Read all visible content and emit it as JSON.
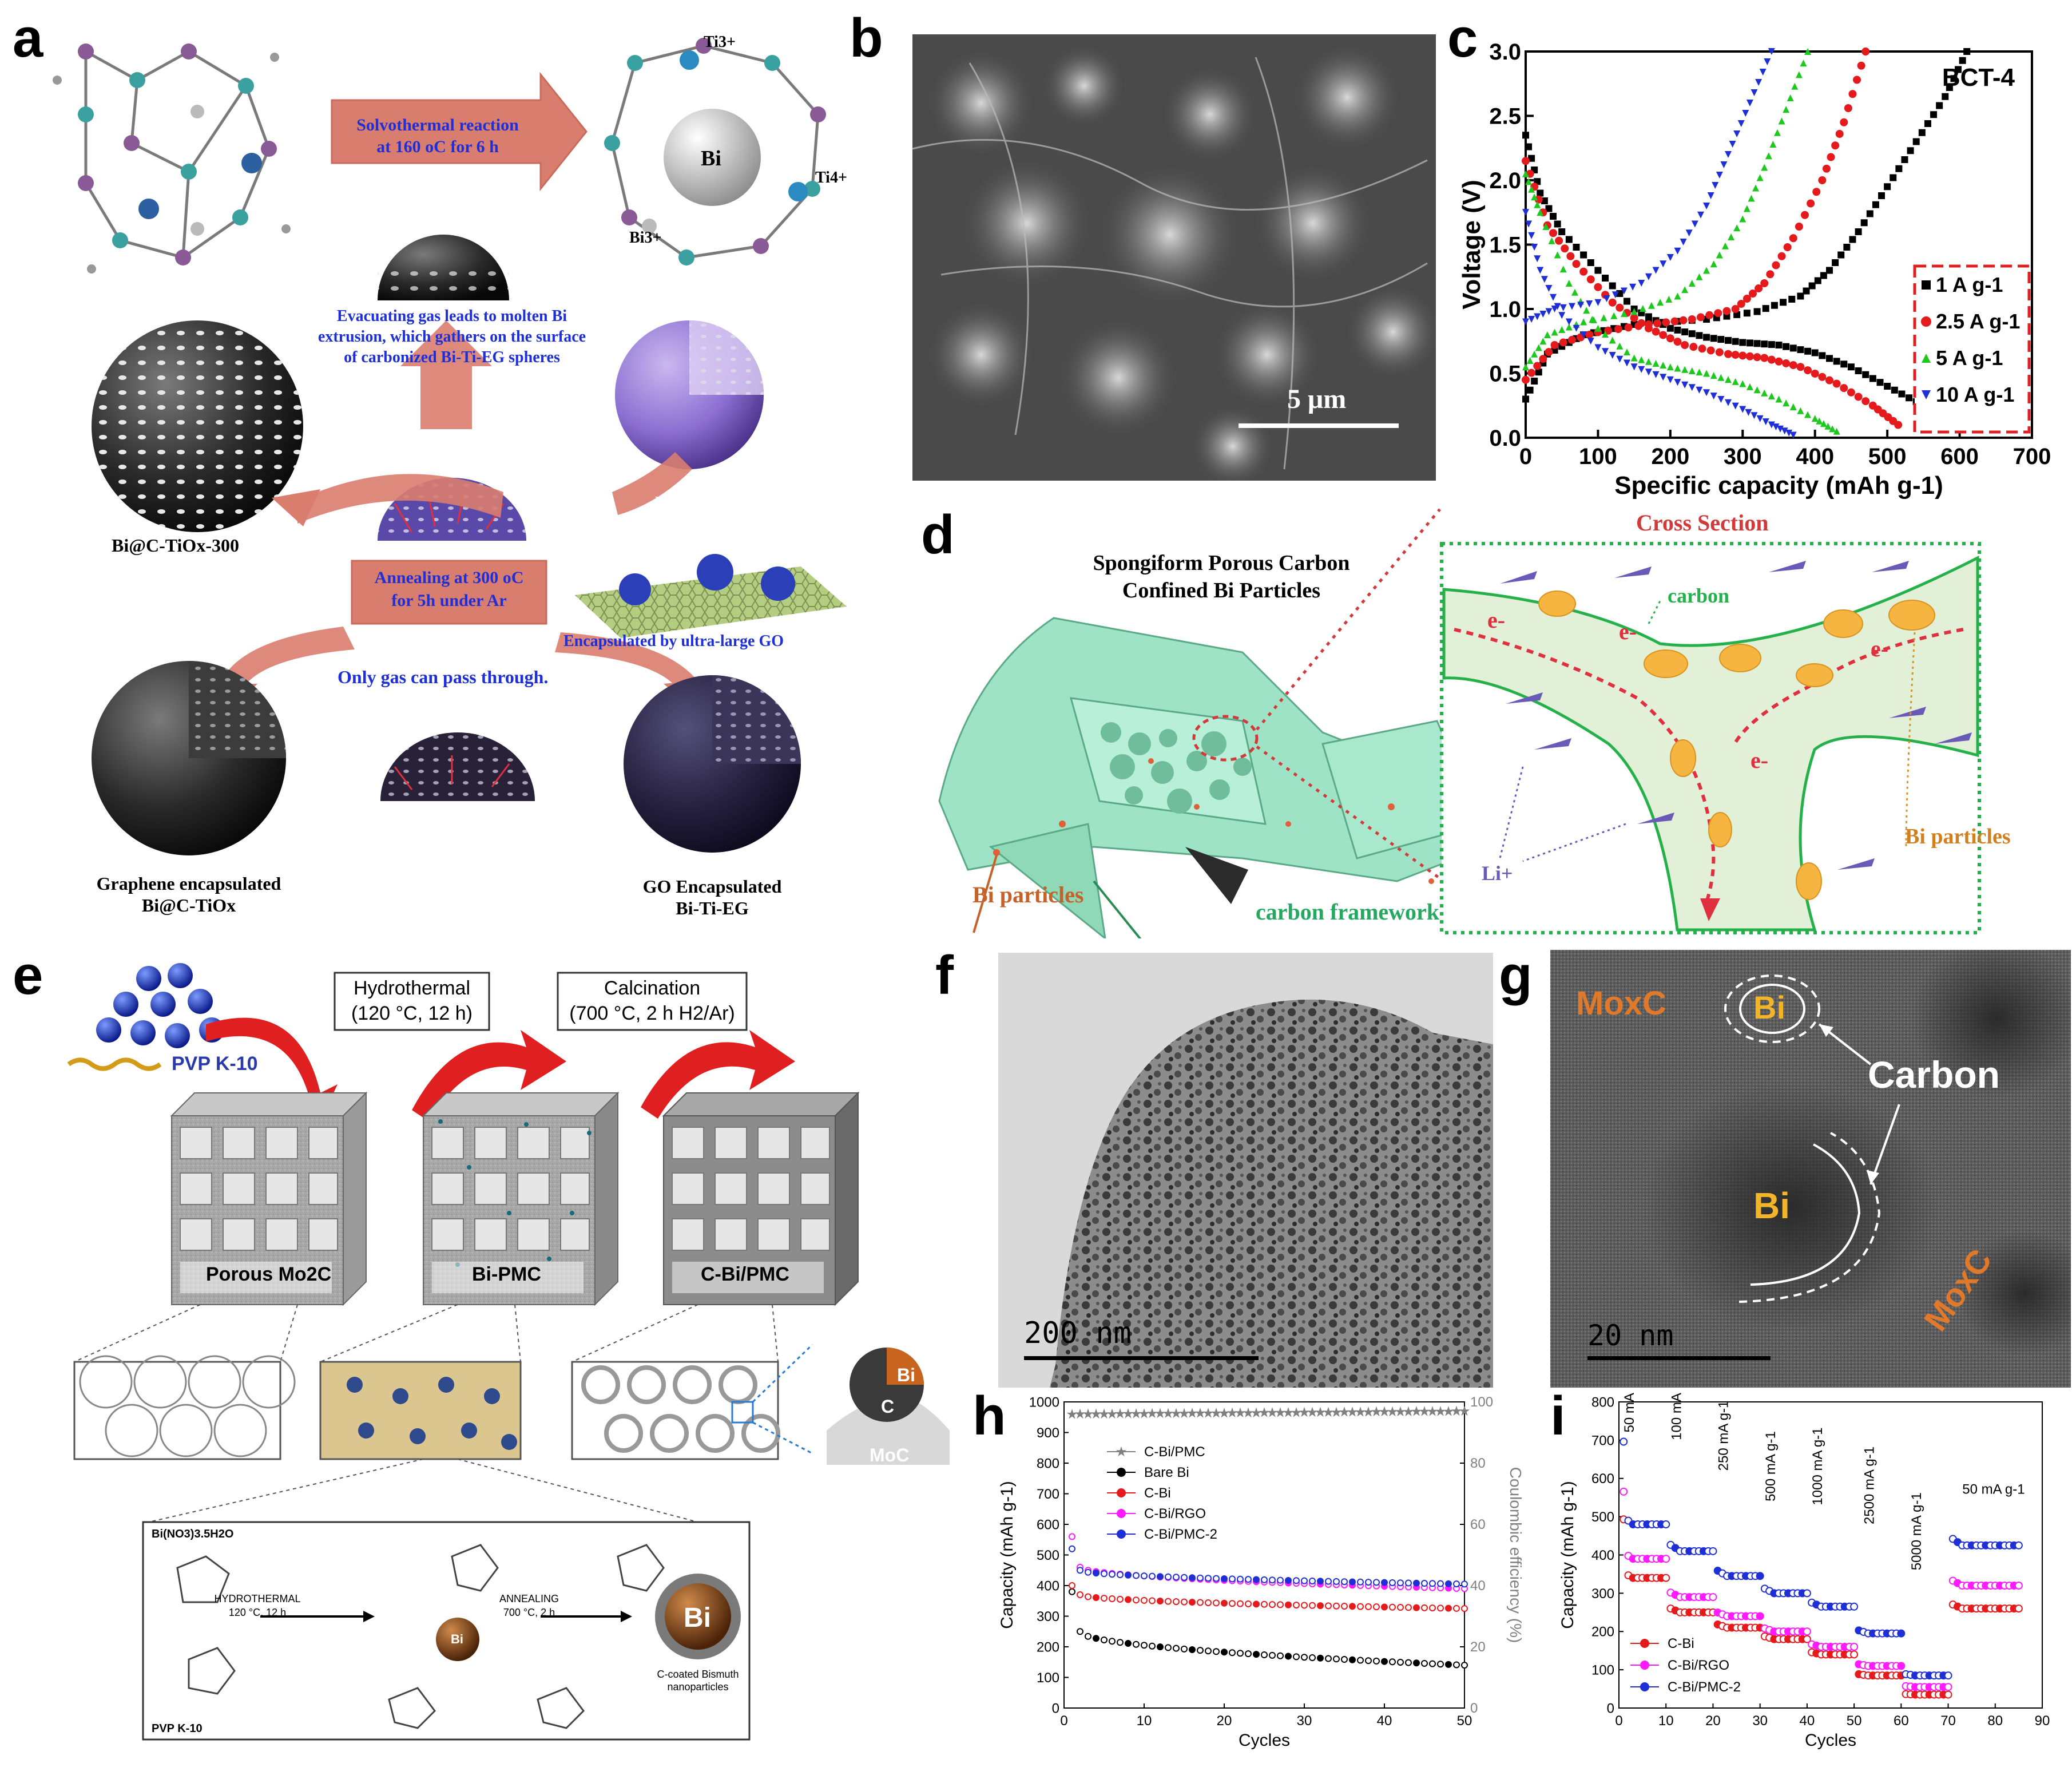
{
  "panels": {
    "a": {
      "label": "a",
      "solvothermal": [
        "Solvothermal reaction",
        "at 160 oC for 6 h"
      ],
      "evacuating": [
        "Evacuating gas leads to molten Bi",
        "extrusion, which gathers on the surface",
        "of carbonized Bi-Ti-EG spheres"
      ],
      "annealing": [
        "Annealing at 300 oC",
        "for 5h under Ar"
      ],
      "only_gas": "Only gas can pass through.",
      "encapsulated_by": "Encapsulated by ultra-large GO",
      "bi_label": "Bi",
      "ti3": "Ti3+",
      "ti4": "Ti4+",
      "bi3": "Bi3+",
      "bi_c_tiox_300": "Bi@C-TiOx-300",
      "bi_ti_eg": "Bi-Ti-EG",
      "graphene_enc": [
        "Graphene encapsulated",
        "Bi@C-TiOx"
      ],
      "go_enc": [
        "GO Encapsulated",
        "Bi-Ti-EG"
      ]
    },
    "b": {
      "label": "b",
      "scalebar": "5 μm"
    },
    "c": {
      "label": "c"
    },
    "d": {
      "label": "d",
      "title": [
        "Spongiform Porous Carbon",
        "Confined  Bi Particles"
      ],
      "cross_section": "Cross Section",
      "carbon": "carbon",
      "bi_particles_left": "Bi particles",
      "bi_particles_right": "Bi particles",
      "carbon_framework": "carbon framework",
      "li": "Li+",
      "e": "e-"
    },
    "e": {
      "label": "e",
      "pvp": "PVP K-10",
      "hydrothermal": [
        "Hydrothermal",
        "(120 °C, 12 h)"
      ],
      "calcination": [
        "Calcination",
        "(700 °C, 2 h H2/Ar)"
      ],
      "porous": "Porous Mo2C",
      "bi_pmc": "Bi-PMC",
      "c_bi_pmc": "C-Bi/PMC",
      "bi_tag": "Bi",
      "c_tag": "C",
      "moc": "MoC",
      "precursor": "Bi(NO3)3.5H2O",
      "hydro_arrow": [
        "HYDROTHERMAL",
        "120 °C, 12 h"
      ],
      "anneal_arrow": [
        "ANNEALING",
        "700 °C, 2 h"
      ],
      "pvp_small": "PVP K-10",
      "bi_center": "Bi",
      "bi_final": "Bi",
      "final_caption": [
        "C-coated Bismuth",
        "nanoparticles"
      ]
    },
    "f": {
      "label": "f",
      "scalebar": "200 nm"
    },
    "g": {
      "label": "g",
      "mo_top": "MoxC",
      "mo_bottom": "MoxC",
      "bi_top": "Bi",
      "bi_mid": "Bi",
      "carbon": "Carbon",
      "scalebar": "20 nm"
    },
    "h": {
      "label": "h"
    },
    "i": {
      "label": "i",
      "rates": [
        "50 mA g-1",
        "100 mA g-1",
        "250 mA g-1",
        "500 mA g-1",
        "1000 mA g-1",
        "2500 mA g-1",
        "5000 mA g-1",
        "50 mA g-1"
      ]
    }
  },
  "chart_data": [
    {
      "panel": "c",
      "type": "scatter",
      "annotation": "BCT-4",
      "xlabel": "Specific capacity (mAh g-1)",
      "ylabel": "Voltage (V)",
      "xlim": [
        0,
        700
      ],
      "ylim": [
        0,
        3.0
      ],
      "xticks": [
        0,
        100,
        200,
        300,
        400,
        500,
        600,
        700
      ],
      "yticks": [
        0.0,
        0.5,
        1.0,
        1.5,
        2.0,
        2.5,
        3.0
      ],
      "legend_placement": "right",
      "series": [
        {
          "name": "1 A g-1",
          "color": "#000000",
          "marker": "square",
          "discharge": [
            [
              0,
              2.35
            ],
            [
              20,
              1.9
            ],
            [
              50,
              1.6
            ],
            [
              100,
              1.3
            ],
            [
              150,
              1.0
            ],
            [
              200,
              0.85
            ],
            [
              250,
              0.78
            ],
            [
              300,
              0.74
            ],
            [
              350,
              0.72
            ],
            [
              400,
              0.66
            ],
            [
              450,
              0.55
            ],
            [
              500,
              0.4
            ],
            [
              550,
              0.25
            ],
            [
              600,
              0.08
            ]
          ],
          "charge": [
            [
              0,
              0.3
            ],
            [
              30,
              0.65
            ],
            [
              80,
              0.8
            ],
            [
              150,
              0.88
            ],
            [
              250,
              0.92
            ],
            [
              320,
              0.98
            ],
            [
              380,
              1.1
            ],
            [
              420,
              1.3
            ],
            [
              460,
              1.6
            ],
            [
              500,
              1.95
            ],
            [
              540,
              2.3
            ],
            [
              580,
              2.65
            ],
            [
              610,
              3.0
            ]
          ]
        },
        {
          "name": "2.5 A g-1",
          "color": "#e41a1c",
          "marker": "circle",
          "discharge": [
            [
              0,
              2.15
            ],
            [
              30,
              1.65
            ],
            [
              70,
              1.35
            ],
            [
              120,
              1.05
            ],
            [
              170,
              0.85
            ],
            [
              220,
              0.72
            ],
            [
              280,
              0.65
            ],
            [
              330,
              0.62
            ],
            [
              380,
              0.55
            ],
            [
              430,
              0.42
            ],
            [
              480,
              0.25
            ],
            [
              515,
              0.1
            ]
          ],
          "charge": [
            [
              0,
              0.45
            ],
            [
              40,
              0.72
            ],
            [
              100,
              0.82
            ],
            [
              170,
              0.88
            ],
            [
              230,
              0.92
            ],
            [
              290,
              1.0
            ],
            [
              330,
              1.2
            ],
            [
              370,
              1.55
            ],
            [
              410,
              2.0
            ],
            [
              440,
              2.45
            ],
            [
              470,
              3.0
            ]
          ]
        },
        {
          "name": "5 A g-1",
          "color": "#1ec81e",
          "marker": "triangle-up",
          "discharge": [
            [
              0,
              2.05
            ],
            [
              20,
              1.75
            ],
            [
              60,
              1.2
            ],
            [
              100,
              0.85
            ],
            [
              150,
              0.62
            ],
            [
              200,
              0.55
            ],
            [
              250,
              0.5
            ],
            [
              300,
              0.42
            ],
            [
              350,
              0.3
            ],
            [
              400,
              0.15
            ],
            [
              430,
              0.05
            ]
          ],
          "charge": [
            [
              0,
              0.55
            ],
            [
              30,
              0.8
            ],
            [
              80,
              0.9
            ],
            [
              150,
              0.98
            ],
            [
              210,
              1.1
            ],
            [
              260,
              1.35
            ],
            [
              300,
              1.7
            ],
            [
              330,
              2.1
            ],
            [
              360,
              2.55
            ],
            [
              390,
              3.0
            ]
          ]
        },
        {
          "name": "10 A g-1",
          "color": "#1f2fd6",
          "marker": "triangle-down",
          "discharge": [
            [
              0,
              1.75
            ],
            [
              20,
              1.3
            ],
            [
              50,
              0.95
            ],
            [
              100,
              0.7
            ],
            [
              150,
              0.55
            ],
            [
              200,
              0.45
            ],
            [
              250,
              0.35
            ],
            [
              300,
              0.22
            ],
            [
              340,
              0.1
            ],
            [
              370,
              0.02
            ]
          ],
          "charge": [
            [
              0,
              0.9
            ],
            [
              40,
              1.0
            ],
            [
              100,
              1.05
            ],
            [
              160,
              1.2
            ],
            [
              210,
              1.45
            ],
            [
              250,
              1.8
            ],
            [
              280,
              2.2
            ],
            [
              310,
              2.6
            ],
            [
              340,
              3.0
            ]
          ]
        }
      ]
    },
    {
      "panel": "h",
      "type": "scatter",
      "xlabel": "Cycles",
      "ylabel": "Capacity (mAh g-1)",
      "y2label": "Coulombic efficiency (%)",
      "xlim": [
        0,
        50
      ],
      "ylim": [
        0,
        1000
      ],
      "y2lim": [
        0,
        100
      ],
      "xticks": [
        0,
        10,
        20,
        30,
        40,
        50
      ],
      "yticks": [
        0,
        100,
        200,
        300,
        400,
        500,
        600,
        700,
        800,
        900,
        1000
      ],
      "y2ticks": [
        0,
        20,
        40,
        60,
        80,
        100
      ],
      "legend_placement": "center-left",
      "series": [
        {
          "name": "C-Bi/PMC",
          "color": "#808080",
          "marker": "star",
          "axis": "y2",
          "start": 96,
          "end": 97
        },
        {
          "name": "Bare Bi",
          "color": "#000000",
          "marker": "circle",
          "start": 380,
          "knee": 250,
          "end": 140
        },
        {
          "name": "C-Bi",
          "color": "#e41a1c",
          "marker": "circle",
          "start": 400,
          "knee": 370,
          "end": 325
        },
        {
          "name": "C-Bi/RGO",
          "color": "#ff1aff",
          "marker": "circle",
          "start": 560,
          "knee": 460,
          "end": 390
        },
        {
          "name": "C-Bi/PMC-2",
          "color": "#1f2fd6",
          "marker": "circle",
          "start": 520,
          "knee": 450,
          "end": 405
        }
      ]
    },
    {
      "panel": "i",
      "type": "scatter",
      "xlabel": "Cycles",
      "ylabel": "Capacity (mAh g-1)",
      "xlim": [
        0,
        90
      ],
      "ylim": [
        0,
        800
      ],
      "xticks": [
        0,
        10,
        20,
        30,
        40,
        50,
        60,
        70,
        80,
        90
      ],
      "yticks": [
        0,
        100,
        200,
        300,
        400,
        500,
        600,
        700,
        800
      ],
      "legend_placement": "bottom-left",
      "segments": [
        [
          0,
          10
        ],
        [
          10,
          20
        ],
        [
          20,
          30
        ],
        [
          30,
          40
        ],
        [
          40,
          50
        ],
        [
          50,
          60
        ],
        [
          60,
          70
        ],
        [
          70,
          85
        ]
      ],
      "series": [
        {
          "name": "C-Bi",
          "color": "#e41a1c",
          "marker": "circle",
          "levels": [
            340,
            250,
            210,
            180,
            140,
            85,
            35,
            260
          ]
        },
        {
          "name": "C-Bi/RGO",
          "color": "#ff1aff",
          "marker": "circle",
          "levels": [
            390,
            290,
            240,
            200,
            160,
            110,
            55,
            320
          ]
        },
        {
          "name": "C-Bi/PMC-2",
          "color": "#1f2fd6",
          "marker": "circle",
          "levels": [
            480,
            410,
            345,
            300,
            265,
            195,
            85,
            425
          ]
        }
      ]
    }
  ]
}
